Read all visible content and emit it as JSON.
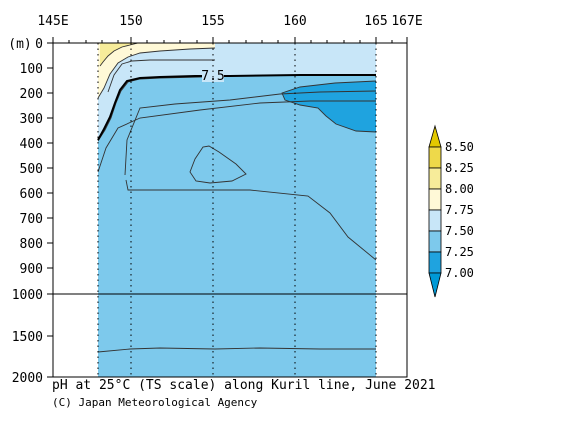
{
  "chart_data": {
    "type": "contour",
    "title": "pH at 25°C (TS scale) along Kuril line, June 2021",
    "credit": "(C) Japan Meteorological Agency",
    "x_axis": {
      "units": "longitude (°E)",
      "range": [
        145,
        167
      ],
      "ticks": [
        {
          "value": 145,
          "label": "145E"
        },
        {
          "value": 150,
          "label": "150"
        },
        {
          "value": 155,
          "label": "155"
        },
        {
          "value": 160,
          "label": "160"
        },
        {
          "value": 165,
          "label": "165"
        },
        {
          "value": 167,
          "label": "167E"
        }
      ]
    },
    "y_axis": {
      "units_label": "(m)",
      "upper_range": [
        0,
        1000
      ],
      "lower_range": [
        1000,
        2000
      ],
      "ticks": [
        "0",
        "100",
        "200",
        "300",
        "400",
        "500",
        "600",
        "700",
        "800",
        "900",
        "1000",
        "1500",
        "2000"
      ]
    },
    "data_region_lon": [
      148,
      165
    ],
    "station_lons": [
      148,
      150,
      155,
      160,
      165
    ],
    "levels": [
      7.0,
      7.25,
      7.5,
      7.75,
      8.0,
      8.25,
      8.5
    ],
    "colors": {
      "below_7.00": "#0099d6",
      "7.00_7.25": "#1fa3df",
      "7.25_7.50": "#7dc9ec",
      "7.50_7.75": "#c8e6f8",
      "7.75_8.00": "#fff9d7",
      "8.00_8.25": "#f7ec9a",
      "8.25_8.50": "#eed94a",
      "above_8.50": "#e2c800"
    },
    "colorbar_labels": [
      "8.50",
      "8.25",
      "8.00",
      "7.75",
      "7.50",
      "7.25",
      "7.00"
    ],
    "contour_labels": [
      {
        "text": "7.5",
        "lon": 155,
        "depth": 125
      }
    ]
  }
}
